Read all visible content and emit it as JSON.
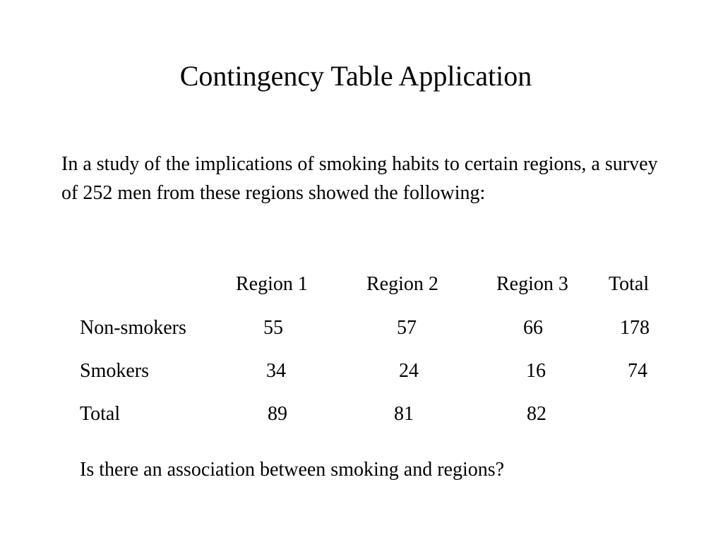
{
  "title": "Contingency Table Application",
  "intro": "In a study of the implications of smoking habits to certain regions, a survey of 252 men from these regions showed the following:",
  "table": {
    "headers": [
      "Region 1",
      "Region 2",
      "Region 3",
      "Total"
    ],
    "rows": [
      {
        "label": "Non-smokers",
        "values": [
          "55",
          "57",
          "66",
          "178"
        ]
      },
      {
        "label": "Smokers",
        "values": [
          "34",
          "24",
          "16",
          "74"
        ]
      },
      {
        "label": "Total",
        "values": [
          "89",
          "81",
          "82"
        ]
      }
    ]
  },
  "question": "Is there an association between smoking and regions?"
}
